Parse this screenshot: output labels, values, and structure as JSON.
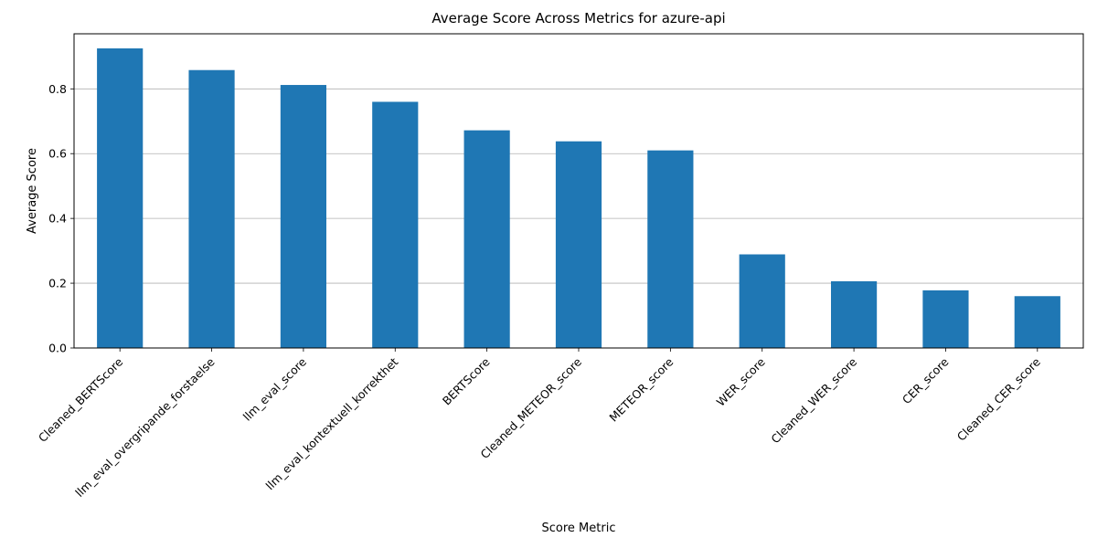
{
  "chart_data": {
    "type": "bar",
    "title": "Average Score Across Metrics for azure-api",
    "xlabel": "Score Metric",
    "ylabel": "Average Score",
    "categories": [
      "Cleaned_BERTScore",
      "llm_eval_overgripande_forstaelse",
      "llm_eval_score",
      "llm_eval_kontextuell_korrekthet",
      "BERTScore",
      "Cleaned_METEOR_score",
      "METEOR_score",
      "WER_score",
      "Cleaned_WER_score",
      "CER_score",
      "Cleaned_CER_score"
    ],
    "values": [
      0.925,
      0.858,
      0.812,
      0.76,
      0.672,
      0.638,
      0.61,
      0.289,
      0.206,
      0.178,
      0.16
    ],
    "ylim": [
      0,
      0.97
    ],
    "yticks": [
      0.0,
      0.2,
      0.4,
      0.6,
      0.8
    ],
    "ytick_labels": [
      "0.0",
      "0.2",
      "0.4",
      "0.6",
      "0.8"
    ],
    "grid": "y",
    "bar_color": "#1f77b4"
  }
}
